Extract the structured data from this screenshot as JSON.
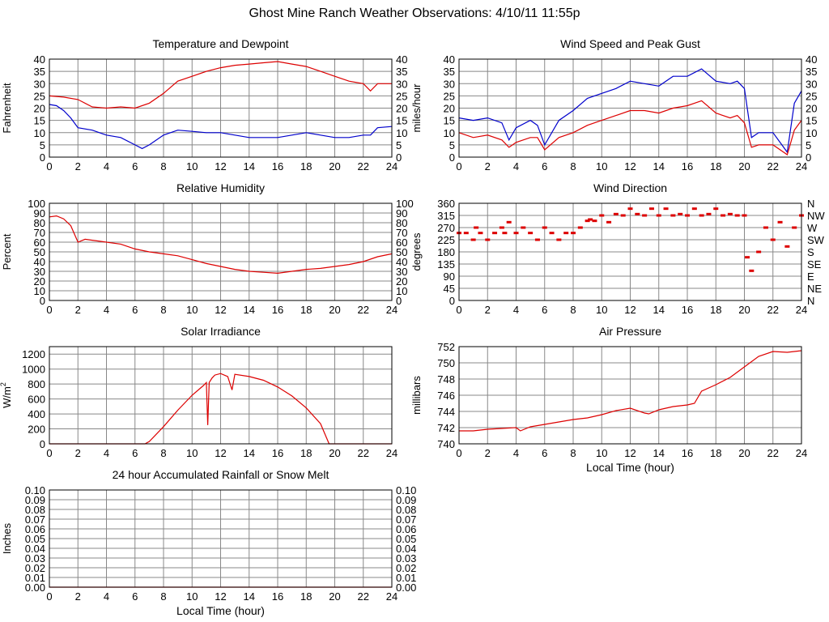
{
  "page": {
    "title": "Ghost Mine Ranch Weather Observations: 4/10/11 11:55p"
  },
  "colors": {
    "primary": "#dd0000",
    "secondary": "#0000cc",
    "grid": "#888888",
    "frame": "#000000"
  },
  "chart_data": [
    {
      "id": "temperature",
      "type": "line",
      "title": "Temperature and Dewpoint",
      "xlabel": "",
      "ylabel": "Fahrenheit",
      "xlim": [
        0,
        24
      ],
      "ylim": [
        0,
        40
      ],
      "xticks": [
        "0",
        "2",
        "4",
        "6",
        "8",
        "10",
        "12",
        "14",
        "16",
        "18",
        "20",
        "22",
        "24"
      ],
      "yticks": [
        "0",
        "5",
        "10",
        "15",
        "20",
        "25",
        "30",
        "35",
        "40"
      ],
      "right_axis": true,
      "grid": true,
      "series": [
        {
          "color": "#dd0000",
          "x": [
            0,
            1,
            2,
            3,
            4,
            5,
            6,
            7,
            8,
            9,
            10,
            11,
            12,
            13,
            14,
            15,
            16,
            17,
            18,
            19,
            20,
            21,
            22,
            22.5,
            23,
            24
          ],
          "y": [
            25,
            24.5,
            23.5,
            20.5,
            20,
            20.5,
            20,
            22,
            26,
            31,
            33,
            35,
            36.5,
            37.5,
            38,
            38.5,
            39,
            38,
            37,
            35,
            33,
            31,
            30,
            27,
            30,
            30
          ]
        },
        {
          "color": "#0000cc",
          "x": [
            0,
            0.5,
            1,
            1.5,
            2,
            3,
            4,
            5,
            6,
            6.5,
            7,
            8,
            9,
            10,
            11,
            12,
            13,
            14,
            15,
            16,
            17,
            18,
            19,
            20,
            21,
            22,
            22.5,
            23,
            24
          ],
          "y": [
            21.5,
            21,
            19,
            16,
            12,
            11,
            9,
            8,
            5,
            3.5,
            5,
            9,
            11,
            10.5,
            10,
            10,
            9,
            8,
            8,
            8,
            9,
            10,
            9,
            8,
            8,
            9,
            9,
            12,
            12.5
          ]
        }
      ]
    },
    {
      "id": "wind-speed",
      "type": "line",
      "title": "Wind Speed and Peak Gust",
      "xlabel": "",
      "ylabel": "miles/hour",
      "xlim": [
        0,
        24
      ],
      "ylim": [
        0,
        40
      ],
      "xticks": [
        "0",
        "2",
        "4",
        "6",
        "8",
        "10",
        "12",
        "14",
        "16",
        "18",
        "20",
        "22",
        "24"
      ],
      "yticks": [
        "0",
        "5",
        "10",
        "15",
        "20",
        "25",
        "30",
        "35",
        "40"
      ],
      "right_axis": true,
      "grid": true,
      "series": [
        {
          "color": "#0000cc",
          "x": [
            0,
            1,
            2,
            3,
            3.5,
            4,
            5,
            5.5,
            6,
            7,
            8,
            9,
            10,
            11,
            12,
            13,
            14,
            15,
            16,
            17,
            18,
            19,
            19.5,
            20,
            20.5,
            21,
            22,
            23,
            23.5,
            24
          ],
          "y": [
            16,
            15,
            16,
            14,
            7,
            12,
            15,
            13,
            5,
            15,
            19,
            24,
            26,
            28,
            31,
            30,
            29,
            33,
            33,
            36,
            31,
            30,
            31,
            28,
            8,
            10,
            10,
            2,
            22,
            27
          ]
        },
        {
          "color": "#dd0000",
          "x": [
            0,
            1,
            2,
            3,
            3.5,
            4,
            5,
            5.5,
            6,
            7,
            8,
            9,
            10,
            11,
            12,
            13,
            14,
            15,
            16,
            17,
            18,
            19,
            19.5,
            20,
            20.5,
            21,
            22,
            23,
            23.5,
            24
          ],
          "y": [
            10,
            8,
            9,
            7,
            4,
            6,
            8,
            8,
            3,
            8,
            10,
            13,
            15,
            17,
            19,
            19,
            18,
            20,
            21,
            23,
            18,
            16,
            17,
            14,
            4,
            5,
            5,
            1,
            11,
            15
          ]
        }
      ]
    },
    {
      "id": "humidity",
      "type": "line",
      "title": "Relative Humidity",
      "xlabel": "",
      "ylabel": "Percent",
      "xlim": [
        0,
        24
      ],
      "ylim": [
        0,
        100
      ],
      "xticks": [
        "0",
        "2",
        "4",
        "6",
        "8",
        "10",
        "12",
        "14",
        "16",
        "18",
        "20",
        "22",
        "24"
      ],
      "yticks": [
        "0",
        "10",
        "20",
        "30",
        "40",
        "50",
        "60",
        "70",
        "80",
        "90",
        "100"
      ],
      "right_axis": true,
      "grid": true,
      "series": [
        {
          "color": "#dd0000",
          "x": [
            0,
            0.5,
            1,
            1.5,
            2,
            2.5,
            3,
            4,
            5,
            6,
            7,
            8,
            9,
            10,
            11,
            12,
            13,
            14,
            15,
            16,
            17,
            18,
            19,
            20,
            21,
            22,
            23,
            24
          ],
          "y": [
            86,
            87,
            84,
            77,
            60,
            63,
            62,
            60,
            58,
            53,
            50,
            48,
            46,
            42,
            38,
            35,
            32,
            30,
            29,
            28,
            30,
            32,
            33,
            35,
            37,
            40,
            45,
            48
          ]
        }
      ]
    },
    {
      "id": "wind-direction",
      "type": "scatter",
      "title": "Wind Direction",
      "xlabel": "",
      "ylabel": "degrees",
      "xlim": [
        0,
        24
      ],
      "ylim": [
        0,
        360
      ],
      "xticks": [
        "0",
        "2",
        "4",
        "6",
        "8",
        "10",
        "12",
        "14",
        "16",
        "18",
        "20",
        "22",
        "24"
      ],
      "yticks": [
        "0",
        "45",
        "90",
        "135",
        "180",
        "225",
        "270",
        "315",
        "360"
      ],
      "right_ticks": [
        "N",
        "NE",
        "E",
        "SE",
        "S",
        "SW",
        "W",
        "NW",
        "N"
      ],
      "grid": true,
      "series": [
        {
          "color": "#dd0000",
          "x": [
            0,
            0.5,
            1,
            1.2,
            1.5,
            2,
            2.5,
            3,
            3.2,
            3.5,
            4,
            4.5,
            5,
            5.5,
            6,
            6.5,
            7,
            7.5,
            8,
            8.5,
            9,
            9.2,
            9.5,
            10,
            10.5,
            11,
            11.5,
            12,
            12.5,
            13,
            13.5,
            14,
            14.5,
            15,
            15.5,
            16,
            16.5,
            17,
            17.5,
            18,
            18.5,
            19,
            19.5,
            20,
            20.2,
            20.5,
            21,
            21.5,
            22,
            22.5,
            23,
            23.5,
            24
          ],
          "y": [
            250,
            250,
            225,
            270,
            250,
            225,
            250,
            270,
            250,
            290,
            250,
            270,
            250,
            225,
            270,
            250,
            225,
            250,
            250,
            270,
            295,
            300,
            295,
            315,
            290,
            320,
            315,
            340,
            320,
            315,
            340,
            315,
            340,
            315,
            320,
            315,
            340,
            315,
            320,
            340,
            315,
            320,
            315,
            315,
            160,
            110,
            180,
            270,
            225,
            290,
            200,
            270,
            315
          ]
        }
      ]
    },
    {
      "id": "solar",
      "type": "line",
      "title": "Solar Irradiance",
      "xlabel": "",
      "ylabel": "W/m²",
      "ylabel_base": "W/m",
      "ylabel_sup": "2",
      "xlim": [
        0,
        24
      ],
      "ylim": [
        0,
        1300
      ],
      "xticks": [
        "0",
        "2",
        "4",
        "6",
        "8",
        "10",
        "12",
        "14",
        "16",
        "18",
        "20",
        "22",
        "24"
      ],
      "yticks": [
        "0",
        "200",
        "400",
        "600",
        "800",
        "1000",
        "1200"
      ],
      "ytick_values": [
        0,
        200,
        400,
        600,
        800,
        1000,
        1200
      ],
      "right_axis": false,
      "grid": true,
      "series": [
        {
          "color": "#dd0000",
          "x": [
            0,
            6.7,
            7,
            8,
            9,
            10,
            10.8,
            11,
            11.1,
            11.2,
            11.4,
            11.6,
            12,
            12.5,
            12.8,
            13,
            14,
            15,
            16,
            17,
            18,
            19,
            19.6,
            20,
            24
          ],
          "y": [
            0,
            0,
            30,
            230,
            450,
            650,
            780,
            820,
            250,
            820,
            880,
            920,
            940,
            900,
            720,
            930,
            900,
            850,
            760,
            640,
            480,
            270,
            0,
            0,
            0
          ]
        }
      ]
    },
    {
      "id": "pressure",
      "type": "line",
      "title": "Air Pressure",
      "xlabel": "Local Time (hour)",
      "ylabel": "millibars",
      "xlim": [
        0,
        24
      ],
      "ylim": [
        740,
        752
      ],
      "xticks": [
        "0",
        "2",
        "4",
        "6",
        "8",
        "10",
        "12",
        "14",
        "16",
        "18",
        "20",
        "22",
        "24"
      ],
      "yticks": [
        "740",
        "742",
        "744",
        "746",
        "748",
        "750",
        "752"
      ],
      "right_axis": false,
      "grid": true,
      "series": [
        {
          "color": "#dd0000",
          "x": [
            0,
            1,
            2,
            3,
            4,
            4.3,
            5,
            6,
            7,
            8,
            9,
            10,
            11,
            12,
            13,
            13.3,
            14,
            15,
            16,
            16.5,
            17,
            18,
            19,
            20,
            21,
            22,
            23,
            24
          ],
          "y": [
            741.6,
            741.6,
            741.8,
            741.9,
            742.0,
            741.6,
            742.1,
            742.4,
            742.7,
            743.0,
            743.2,
            743.6,
            744.1,
            744.4,
            743.8,
            743.7,
            744.2,
            744.6,
            744.8,
            745.0,
            746.5,
            747.3,
            748.2,
            749.5,
            750.8,
            751.4,
            751.3,
            751.5
          ]
        }
      ]
    },
    {
      "id": "rainfall",
      "type": "line",
      "title": "24 hour Accumulated Rainfall or Snow Melt",
      "xlabel": "Local Time (hour)",
      "ylabel": "Inches",
      "xlim": [
        0,
        24
      ],
      "ylim": [
        0,
        0.1
      ],
      "xticks": [
        "0",
        "2",
        "4",
        "6",
        "8",
        "10",
        "12",
        "14",
        "16",
        "18",
        "20",
        "22",
        "24"
      ],
      "yticks": [
        "0.00",
        "0.01",
        "0.02",
        "0.03",
        "0.04",
        "0.05",
        "0.06",
        "0.07",
        "0.08",
        "0.09",
        "0.10"
      ],
      "right_axis": true,
      "grid": true,
      "series": [
        {
          "color": "#dd0000",
          "x": [
            0,
            24
          ],
          "y": [
            0,
            0
          ]
        }
      ]
    }
  ]
}
